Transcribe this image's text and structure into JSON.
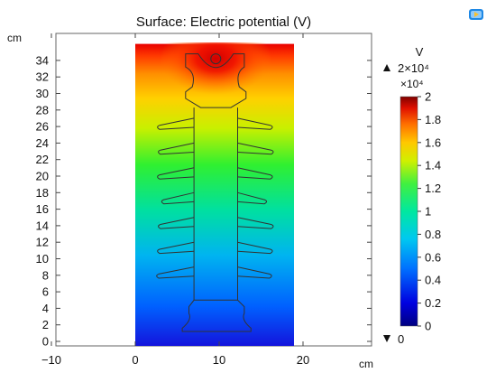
{
  "chart_data": {
    "type": "heatmap",
    "title": "Surface: Electric potential (V)",
    "xlabel": "cm",
    "ylabel": "cm",
    "xlim": [
      -10,
      22
    ],
    "ylim": [
      -0.5,
      36
    ],
    "xticks": [
      -10,
      0,
      10,
      20
    ],
    "yticks": [
      0,
      2,
      4,
      6,
      8,
      10,
      12,
      14,
      16,
      18,
      20,
      22,
      24,
      26,
      28,
      30,
      32,
      34
    ],
    "domain": {
      "x": [
        0,
        19
      ],
      "y": [
        0,
        36
      ]
    },
    "colorbar": {
      "unit": "V",
      "max_label": "2×10⁴",
      "min_label": "0",
      "multiplier_label": "×10⁴",
      "range": [
        0,
        2
      ],
      "ticks": [
        0,
        0.2,
        0.4,
        0.6,
        0.8,
        1,
        1.2,
        1.4,
        1.6,
        1.8,
        2
      ]
    }
  },
  "icons": {
    "app": "comsol-app-icon"
  }
}
